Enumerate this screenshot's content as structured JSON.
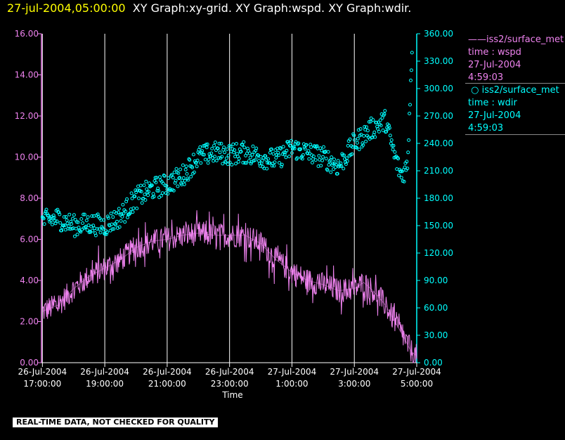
{
  "header": {
    "timestamp": "27-jul-2004,05:00:00",
    "graphs": "XY Graph:xy-grid.  XY Graph:wspd.  XY Graph:wdir."
  },
  "legend": [
    {
      "line1": "iss2/surface_met",
      "line2": "time : wspd",
      "line3": "27-Jul-2004",
      "line4": "4:59:03",
      "color": "#ee82ee",
      "marker": "line"
    },
    {
      "line1": "iss2/surface_met",
      "line2": "time : wdir",
      "line3": "27-Jul-2004",
      "line4": "4:59:03",
      "color": "#00ffff",
      "marker": "circle"
    }
  ],
  "warning": "REAL-TIME DATA, NOT CHECKED FOR QUALITY",
  "chart_data": {
    "type": "line",
    "xlabel": "Time",
    "x_range_hours": [
      16.97,
      29.0
    ],
    "x_ticks": [
      {
        "date": "26-Jul-2004",
        "time": "17:00:00",
        "hour": 17
      },
      {
        "date": "26-Jul-2004",
        "time": "19:00:00",
        "hour": 19
      },
      {
        "date": "26-Jul-2004",
        "time": "21:00:00",
        "hour": 21
      },
      {
        "date": "26-Jul-2004",
        "time": "23:00:00",
        "hour": 23
      },
      {
        "date": "27-Jul-2004",
        "time": "1:00:00",
        "hour": 25
      },
      {
        "date": "27-Jul-2004",
        "time": "3:00:00",
        "hour": 27
      },
      {
        "date": "27-Jul-2004",
        "time": "5:00:00",
        "hour": 29
      }
    ],
    "y_left": {
      "range": [
        0,
        16
      ],
      "ticks": [
        "0.00",
        "2.00",
        "4.00",
        "6.00",
        "8.00",
        "10.00",
        "12.00",
        "14.00",
        "16.00"
      ],
      "color": "#ee82ee"
    },
    "y_right": {
      "range": [
        0,
        360
      ],
      "ticks": [
        "0.00",
        "30.00",
        "60.00",
        "90.00",
        "120.00",
        "150.00",
        "180.00",
        "210.00",
        "240.00",
        "270.00",
        "300.00",
        "330.00",
        "360.00"
      ],
      "color": "#00ffff"
    },
    "grid": "vertical",
    "series": [
      {
        "name": "iss2/surface_met time : wspd",
        "axis": "left",
        "style": "line",
        "color": "#ee82ee",
        "x": [
          17.0,
          17.5,
          18.0,
          18.5,
          19.0,
          19.5,
          20.0,
          20.5,
          21.0,
          21.5,
          22.0,
          22.5,
          23.0,
          23.5,
          24.0,
          24.5,
          25.0,
          25.5,
          26.0,
          26.5,
          27.0,
          27.3,
          27.6,
          28.0,
          28.3,
          28.6,
          28.8,
          29.0
        ],
        "y": [
          2.5,
          2.8,
          3.6,
          4.2,
          4.6,
          5.0,
          5.6,
          5.9,
          6.0,
          6.2,
          6.3,
          6.2,
          6.2,
          6.2,
          5.8,
          5.0,
          4.4,
          4.0,
          3.8,
          3.5,
          3.6,
          3.9,
          3.5,
          2.8,
          2.0,
          1.2,
          0.6,
          0.3
        ],
        "noise": 0.6
      },
      {
        "name": "iss2/surface_met time : wdir",
        "axis": "right",
        "style": "scatter",
        "color": "#00ffff",
        "x": [
          17.0,
          17.5,
          18.0,
          18.5,
          19.0,
          19.5,
          20.0,
          20.5,
          21.0,
          21.5,
          22.0,
          22.5,
          23.0,
          23.5,
          24.0,
          24.5,
          25.0,
          25.5,
          26.0,
          26.5,
          27.0,
          27.5,
          28.0,
          28.3,
          28.5,
          28.7,
          28.85
        ],
        "y": [
          155,
          158,
          150,
          152,
          150,
          160,
          180,
          190,
          195,
          205,
          225,
          230,
          228,
          230,
          225,
          222,
          235,
          230,
          225,
          215,
          240,
          255,
          265,
          225,
          205,
          215,
          345
        ],
        "noise": 12
      }
    ]
  }
}
